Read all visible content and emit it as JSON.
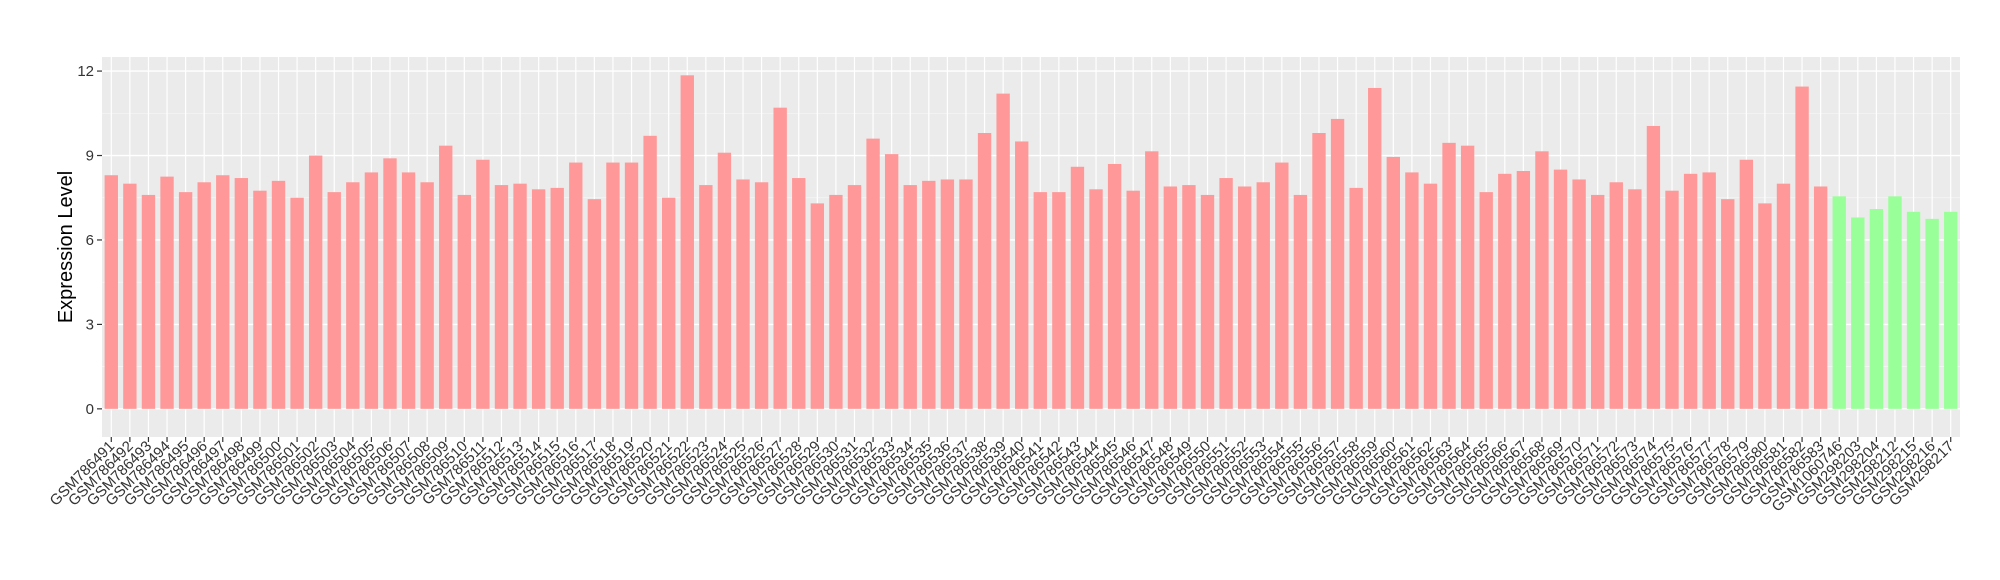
{
  "chart_data": {
    "type": "bar",
    "title": "",
    "xlabel": "",
    "ylabel": "Expression Level",
    "ylim": [
      -1,
      12.5
    ],
    "yticks": [
      0,
      3,
      6,
      9,
      12
    ],
    "grid": true,
    "legend": "none",
    "colors": {
      "panel": "#EBEBEB",
      "grid": "#FFFFFF",
      "group1": "#FF9999",
      "group2": "#99FF99"
    },
    "categories": [
      "GSM786491",
      "GSM786492",
      "GSM786493",
      "GSM786494",
      "GSM786495",
      "GSM786496",
      "GSM786497",
      "GSM786498",
      "GSM786499",
      "GSM786500",
      "GSM786501",
      "GSM786502",
      "GSM786503",
      "GSM786504",
      "GSM786505",
      "GSM786506",
      "GSM786507",
      "GSM786508",
      "GSM786509",
      "GSM786510",
      "GSM786511",
      "GSM786512",
      "GSM786513",
      "GSM786514",
      "GSM786515",
      "GSM786516",
      "GSM786517",
      "GSM786518",
      "GSM786519",
      "GSM786520",
      "GSM786521",
      "GSM786522",
      "GSM786523",
      "GSM786524",
      "GSM786525",
      "GSM786526",
      "GSM786527",
      "GSM786528",
      "GSM786529",
      "GSM786530",
      "GSM786531",
      "GSM786532",
      "GSM786533",
      "GSM786534",
      "GSM786535",
      "GSM786536",
      "GSM786537",
      "GSM786538",
      "GSM786539",
      "GSM786540",
      "GSM786541",
      "GSM786542",
      "GSM786543",
      "GSM786544",
      "GSM786545",
      "GSM786546",
      "GSM786547",
      "GSM786548",
      "GSM786549",
      "GSM786550",
      "GSM786551",
      "GSM786552",
      "GSM786553",
      "GSM786554",
      "GSM786555",
      "GSM786556",
      "GSM786557",
      "GSM786558",
      "GSM786559",
      "GSM786560",
      "GSM786561",
      "GSM786562",
      "GSM786563",
      "GSM786564",
      "GSM786565",
      "GSM786566",
      "GSM786567",
      "GSM786568",
      "GSM786569",
      "GSM786570",
      "GSM786571",
      "GSM786572",
      "GSM786573",
      "GSM786574",
      "GSM786575",
      "GSM786576",
      "GSM786577",
      "GSM786578",
      "GSM786579",
      "GSM786580",
      "GSM786581",
      "GSM786582",
      "GSM786583",
      "GSM1060746",
      "GSM298203",
      "GSM298204",
      "GSM298212",
      "GSM298215",
      "GSM298216",
      "GSM298217"
    ],
    "values": [
      8.3,
      8.0,
      7.6,
      8.25,
      7.7,
      8.05,
      8.3,
      8.2,
      7.75,
      8.1,
      7.5,
      9.0,
      7.7,
      8.05,
      8.4,
      8.9,
      8.4,
      8.05,
      9.35,
      7.6,
      8.85,
      7.95,
      8.0,
      7.8,
      7.85,
      8.75,
      7.45,
      8.75,
      8.75,
      9.7,
      7.5,
      11.85,
      7.95,
      9.1,
      8.15,
      8.05,
      10.7,
      8.2,
      7.3,
      7.6,
      7.95,
      9.6,
      9.05,
      7.95,
      8.1,
      8.15,
      8.15,
      9.8,
      11.2,
      9.5,
      7.7,
      7.7,
      8.6,
      7.8,
      8.7,
      7.75,
      9.15,
      7.9,
      7.95,
      7.6,
      8.2,
      7.9,
      8.05,
      8.75,
      7.6,
      9.8,
      10.3,
      7.85,
      11.4,
      8.95,
      8.4,
      8.0,
      9.45,
      9.35,
      7.7,
      8.35,
      8.45,
      9.15,
      8.5,
      8.15,
      7.6,
      8.05,
      7.8,
      10.05,
      7.75,
      8.35,
      8.4,
      7.45,
      8.85,
      7.3,
      8.0,
      11.45,
      7.9,
      7.55,
      6.8,
      7.1,
      7.55,
      7.0,
      6.75,
      7.0
    ],
    "groups": [
      1,
      1,
      1,
      1,
      1,
      1,
      1,
      1,
      1,
      1,
      1,
      1,
      1,
      1,
      1,
      1,
      1,
      1,
      1,
      1,
      1,
      1,
      1,
      1,
      1,
      1,
      1,
      1,
      1,
      1,
      1,
      1,
      1,
      1,
      1,
      1,
      1,
      1,
      1,
      1,
      1,
      1,
      1,
      1,
      1,
      1,
      1,
      1,
      1,
      1,
      1,
      1,
      1,
      1,
      1,
      1,
      1,
      1,
      1,
      1,
      1,
      1,
      1,
      1,
      1,
      1,
      1,
      1,
      1,
      1,
      1,
      1,
      1,
      1,
      1,
      1,
      1,
      1,
      1,
      1,
      1,
      1,
      1,
      1,
      1,
      1,
      1,
      1,
      1,
      1,
      1,
      1,
      1,
      2,
      2,
      2,
      2,
      2,
      2,
      2
    ]
  }
}
